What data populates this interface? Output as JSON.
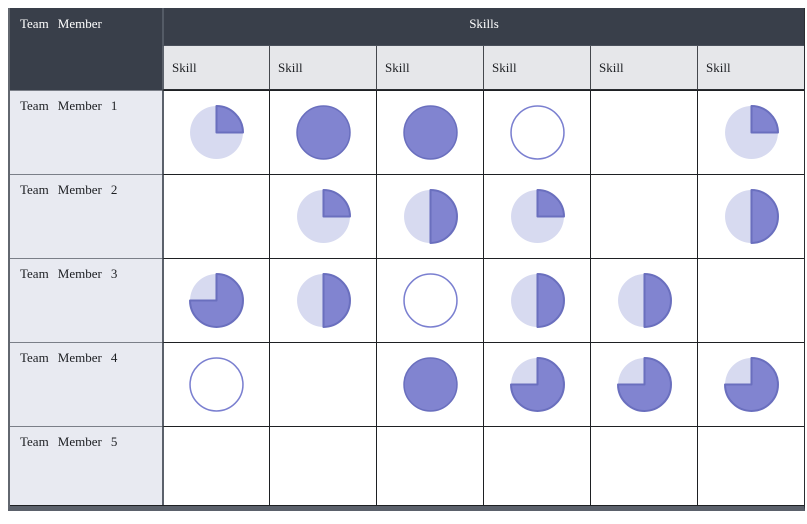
{
  "table": {
    "corner_header": "Team Member",
    "group_header": "Skills",
    "column_headers": [
      "Skill",
      "Skill",
      "Skill",
      "Skill",
      "Skill",
      "Skill"
    ],
    "rows": [
      {
        "label": "Team Member 1",
        "values": [
          25,
          100,
          100,
          0,
          null,
          25
        ]
      },
      {
        "label": "Team Member 2",
        "values": [
          null,
          25,
          50,
          25,
          null,
          50
        ]
      },
      {
        "label": "Team Member 3",
        "values": [
          75,
          50,
          0,
          50,
          50,
          null
        ]
      },
      {
        "label": "Team Member 4",
        "values": [
          0,
          null,
          100,
          75,
          75,
          75
        ]
      },
      {
        "label": "Team Member 5",
        "values": [
          null,
          null,
          null,
          null,
          null,
          null
        ]
      }
    ]
  },
  "colors": {
    "header_bg": "#393f4a",
    "subheader_bg": "#e6e7ea",
    "row_label_bg": "#e8eaf1",
    "pie_fill": "#8184d0",
    "pie_stroke": "#6a6fbe",
    "pie_track": "#d7daf0",
    "empty_stroke": "#7a7fd0"
  },
  "chart_data": {
    "type": "table",
    "columns": [
      "Team Member",
      "Skill",
      "Skill",
      "Skill",
      "Skill",
      "Skill",
      "Skill"
    ],
    "rows": [
      [
        "Team Member 1",
        25,
        100,
        100,
        0,
        null,
        25
      ],
      [
        "Team Member 2",
        null,
        25,
        50,
        25,
        null,
        50
      ],
      [
        "Team Member 3",
        75,
        50,
        0,
        50,
        50,
        null
      ],
      [
        "Team Member 4",
        0,
        null,
        100,
        75,
        75,
        75
      ],
      [
        "Team Member 5",
        null,
        null,
        null,
        null,
        null,
        null
      ]
    ],
    "cell_encoding": "harvey-ball pie fill percent (0 = empty outline circle, 100 = full circle, null = blank cell)",
    "legend_position": "none",
    "grid": true
  }
}
